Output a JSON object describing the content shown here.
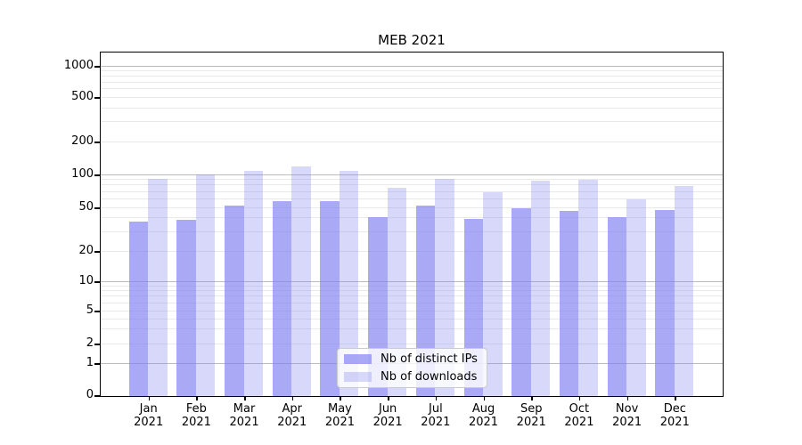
{
  "title": "MEB 2021",
  "chart_data": {
    "type": "bar",
    "title": "MEB 2021",
    "categories": [
      "Jan",
      "Feb",
      "Mar",
      "Apr",
      "May",
      "Jun",
      "Jul",
      "Aug",
      "Sep",
      "Oct",
      "Nov",
      "Dec"
    ],
    "category_year": "2021",
    "series": [
      {
        "name": "Nb of distinct IPs",
        "values": [
          37,
          38,
          51,
          57,
          57,
          40,
          51,
          39,
          49,
          46,
          40,
          47
        ]
      },
      {
        "name": "Nb of downloads",
        "values": [
          90,
          100,
          106,
          118,
          106,
          75,
          91,
          68,
          87,
          89,
          59,
          77
        ]
      }
    ],
    "xlabel": "",
    "ylabel": "",
    "yscale": "symlog",
    "ylim": [
      0,
      1300
    ],
    "yticks": [
      0,
      1,
      2,
      5,
      10,
      20,
      50,
      100,
      200,
      500,
      1000
    ],
    "grid": true,
    "legend_position": "lower center",
    "colors": {
      "bar_base_rgb": "128,128,240",
      "series_alpha": [
        0.68,
        0.31
      ],
      "grid_major": "#bcbcbc",
      "grid_minor": "#e9e9e9",
      "spine": "#000000"
    },
    "major_gridlines": [
      1,
      10,
      100,
      1000
    ],
    "minor_gridlines": [
      2,
      3,
      4,
      5,
      6,
      7,
      8,
      9,
      20,
      30,
      40,
      50,
      60,
      70,
      80,
      90,
      200,
      300,
      400,
      500,
      600,
      700,
      800,
      900
    ],
    "scale_anchors": {
      "0": 385,
      "1": 349,
      "2": 327,
      "5": 290,
      "10": 257,
      "20": 223,
      "50": 174,
      "100": 137,
      "200": 100,
      "500": 50,
      "1000": 15
    }
  }
}
